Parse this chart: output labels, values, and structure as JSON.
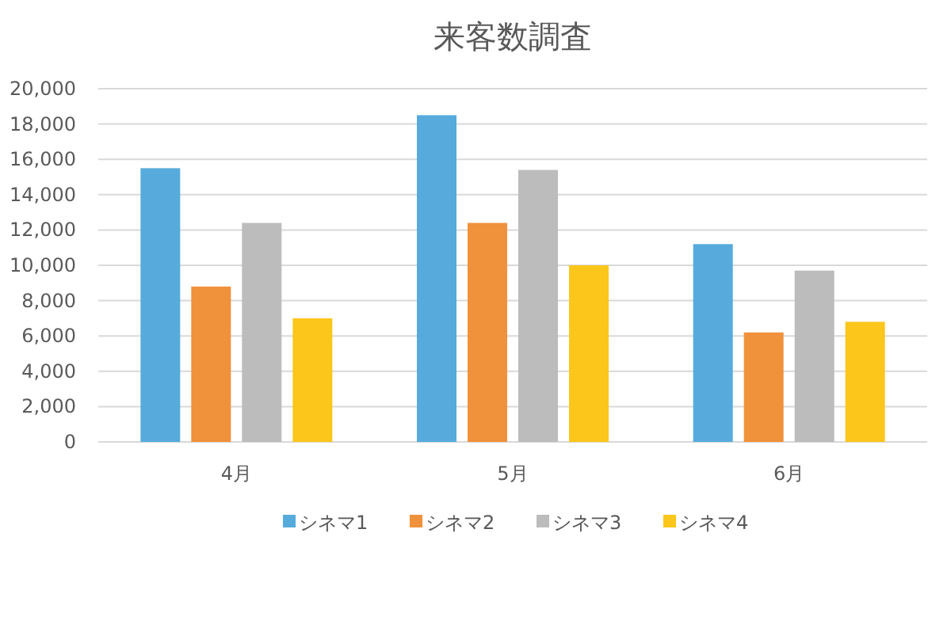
{
  "chart_data": {
    "type": "bar",
    "title": "来客数調査",
    "categories": [
      "4月",
      "5月",
      "6月"
    ],
    "series": [
      {
        "name": "シネマ1",
        "color": "#56abdc",
        "values": [
          15500,
          18500,
          11200
        ]
      },
      {
        "name": "シネマ2",
        "color": "#f0913c",
        "values": [
          8800,
          12400,
          6200
        ]
      },
      {
        "name": "シネマ3",
        "color": "#bcbcbc",
        "values": [
          12400,
          15400,
          9700
        ]
      },
      {
        "name": "シネマ4",
        "color": "#fcc61b",
        "values": [
          7000,
          10000,
          6800
        ]
      }
    ],
    "ylim": [
      0,
      20000
    ],
    "yticks": [
      {
        "value": 0,
        "label": "0"
      },
      {
        "value": 2000,
        "label": "2,000"
      },
      {
        "value": 4000,
        "label": "4,000"
      },
      {
        "value": 6000,
        "label": "6,000"
      },
      {
        "value": 8000,
        "label": "8,000"
      },
      {
        "value": 10000,
        "label": "10,000"
      },
      {
        "value": 12000,
        "label": "12,000"
      },
      {
        "value": 14000,
        "label": "14,000"
      },
      {
        "value": 16000,
        "label": "16,000"
      },
      {
        "value": 18000,
        "label": "18,000"
      },
      {
        "value": 20000,
        "label": "20,000"
      }
    ],
    "grid": "y",
    "legend": "bottom"
  }
}
